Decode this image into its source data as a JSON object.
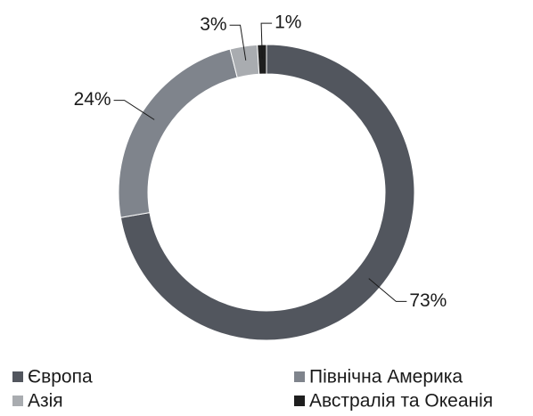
{
  "chart_data": {
    "type": "donut",
    "categories": [
      "Європа",
      "Північна Америка",
      "Азія",
      "Австралія та Океанія"
    ],
    "values": [
      73,
      24,
      3,
      1
    ],
    "value_labels": [
      "73%",
      "24%",
      "3%",
      "1%"
    ],
    "colors": [
      "#52565e",
      "#7f848c",
      "#a9acb0",
      "#1e1e1e"
    ],
    "legend": "bottom"
  }
}
